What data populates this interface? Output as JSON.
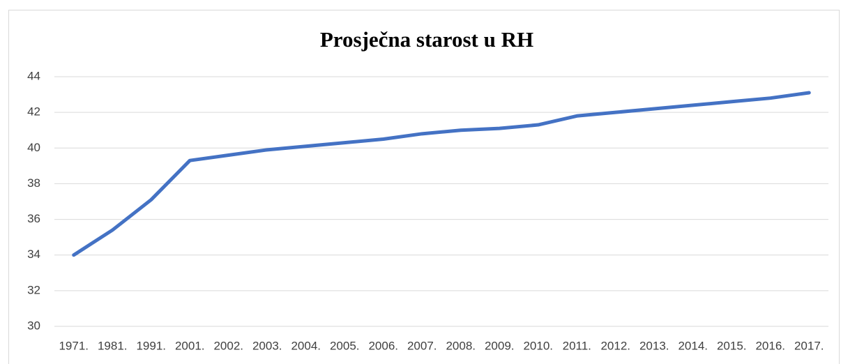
{
  "chart_data": {
    "type": "line",
    "title": "Prosječna starost u RH",
    "categories": [
      "1971.",
      "1981.",
      "1991.",
      "2001.",
      "2002.",
      "2003.",
      "2004.",
      "2005.",
      "2006.",
      "2007.",
      "2008.",
      "2009.",
      "2010.",
      "2011.",
      "2012.",
      "2013.",
      "2014.",
      "2015.",
      "2016.",
      "2017."
    ],
    "values": [
      34,
      35.4,
      37.1,
      39.3,
      39.6,
      39.9,
      40.1,
      40.3,
      40.5,
      40.8,
      41.0,
      41.1,
      41.3,
      41.8,
      42.0,
      42.2,
      42.4,
      42.6,
      42.8,
      43.1
    ],
    "color": "#4472c4",
    "ylim": [
      30,
      44
    ],
    "yticks": [
      30,
      32,
      34,
      36,
      38,
      40,
      42,
      44
    ],
    "grid": true
  }
}
